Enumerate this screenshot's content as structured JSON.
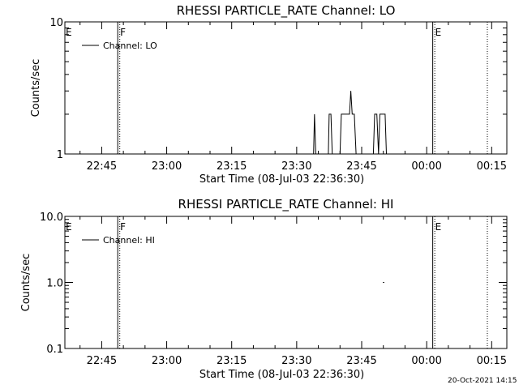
{
  "chart_data": [
    {
      "type": "line",
      "title": "RHESSI PARTICLE_RATE Channel: LO",
      "xlabel": "Start Time (08-Jul-03 22:36:30)",
      "ylabel": "Counts/sec",
      "yscale": "log",
      "ylim": [
        1,
        10
      ],
      "y_tick_labels": [
        "1",
        "10"
      ],
      "xlim_minutes": [
        0,
        102
      ],
      "x_tick_labels": [
        "22:45",
        "23:00",
        "23:15",
        "23:30",
        "23:45",
        "00:00",
        "00:15"
      ],
      "x_tick_minutes": [
        8.5,
        23.5,
        38.5,
        53.5,
        68.5,
        83.5,
        98.5
      ],
      "legend": {
        "entries": [
          "Channel: LO"
        ],
        "position": "top-left"
      },
      "markers": [
        {
          "label": "E",
          "minute": 0,
          "style": "solid"
        },
        {
          "label": "F",
          "minute": 12.2,
          "style": "solid-dotted"
        },
        {
          "label": "E",
          "minute": 84.9,
          "style": "solid-dotted"
        },
        {
          "label": "",
          "minute": 97.5,
          "style": "dotted"
        }
      ],
      "series": [
        {
          "name": "Channel: LO",
          "points": [
            [
              57.4,
              1
            ],
            [
              57.6,
              2
            ],
            [
              57.9,
              1
            ],
            [
              59.0,
              1
            ],
            [
              59.3,
              1
            ],
            [
              60.8,
              1
            ],
            [
              61.0,
              2
            ],
            [
              61.4,
              2
            ],
            [
              61.7,
              1
            ],
            [
              63.5,
              1
            ],
            [
              63.8,
              2
            ],
            [
              65.7,
              2
            ],
            [
              66.0,
              3
            ],
            [
              66.3,
              2
            ],
            [
              66.8,
              2
            ],
            [
              67.2,
              1
            ],
            [
              71.2,
              1
            ],
            [
              71.5,
              2
            ],
            [
              72.0,
              2
            ],
            [
              72.4,
              1
            ],
            [
              72.7,
              2
            ],
            [
              73.9,
              2
            ],
            [
              74.2,
              1
            ]
          ]
        }
      ]
    },
    {
      "type": "line",
      "title": "RHESSI PARTICLE_RATE Channel: HI",
      "xlabel": "Start Time (08-Jul-03 22:36:30)",
      "ylabel": "Counts/sec",
      "yscale": "log",
      "ylim": [
        0.1,
        10
      ],
      "y_tick_labels": [
        "0.1",
        "1.0",
        "10.0"
      ],
      "xlim_minutes": [
        0,
        102
      ],
      "x_tick_labels": [
        "22:45",
        "23:00",
        "23:15",
        "23:30",
        "23:45",
        "00:00",
        "00:15"
      ],
      "x_tick_minutes": [
        8.5,
        23.5,
        38.5,
        53.5,
        68.5,
        83.5,
        98.5
      ],
      "legend": {
        "entries": [
          "Channel: HI"
        ],
        "position": "top-left"
      },
      "markers": [
        {
          "label": "E",
          "minute": 0,
          "style": "solid"
        },
        {
          "label": "F",
          "minute": 12.2,
          "style": "solid-dotted"
        },
        {
          "label": "E",
          "minute": 84.9,
          "style": "solid-dotted"
        },
        {
          "label": "",
          "minute": 97.5,
          "style": "dotted"
        }
      ],
      "series": [
        {
          "name": "Channel: HI",
          "points": [
            [
              73.4,
              1
            ],
            [
              73.7,
              1
            ]
          ]
        }
      ]
    }
  ],
  "footer": {
    "timestamp": "20-Oct-2021 14:15"
  }
}
